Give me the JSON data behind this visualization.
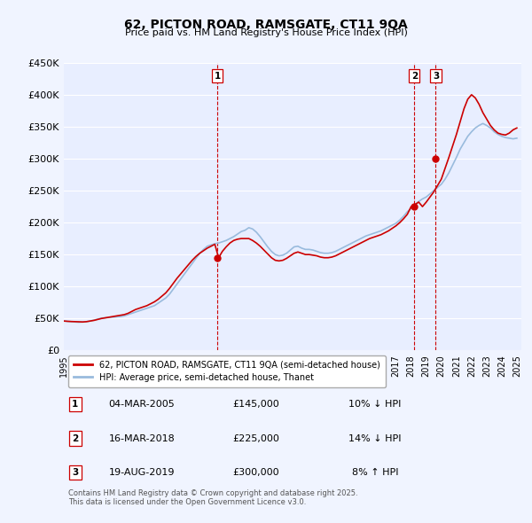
{
  "title": "62, PICTON ROAD, RAMSGATE, CT11 9QA",
  "subtitle": "Price paid vs. HM Land Registry's House Price Index (HPI)",
  "ylabel": "",
  "ylim": [
    0,
    450000
  ],
  "yticks": [
    0,
    50000,
    100000,
    150000,
    200000,
    250000,
    300000,
    350000,
    400000,
    450000
  ],
  "ytick_labels": [
    "£0",
    "£50K",
    "£100K",
    "£150K",
    "£200K",
    "£250K",
    "£300K",
    "£350K",
    "£400K",
    "£450K"
  ],
  "background_color": "#f0f4ff",
  "plot_bg_color": "#e8eeff",
  "grid_color": "#ffffff",
  "red_color": "#cc0000",
  "blue_color": "#99bbdd",
  "transaction_color": "#cc0000",
  "legend_label_red": "62, PICTON ROAD, RAMSGATE, CT11 9QA (semi-detached house)",
  "legend_label_blue": "HPI: Average price, semi-detached house, Thanet",
  "transactions": [
    {
      "num": 1,
      "date": "04-MAR-2005",
      "price": 145000,
      "pct": "10%",
      "dir": "↓",
      "year": 2005.17
    },
    {
      "num": 2,
      "date": "16-MAR-2018",
      "price": 225000,
      "pct": "14%",
      "dir": "↓",
      "year": 2018.21
    },
    {
      "num": 3,
      "date": "19-AUG-2019",
      "price": 300000,
      "pct": "8%",
      "dir": "↑",
      "year": 2019.63
    }
  ],
  "footer": "Contains HM Land Registry data © Crown copyright and database right 2025.\nThis data is licensed under the Open Government Licence v3.0.",
  "hpi_years": [
    1995.0,
    1995.25,
    1995.5,
    1995.75,
    1996.0,
    1996.25,
    1996.5,
    1996.75,
    1997.0,
    1997.25,
    1997.5,
    1997.75,
    1998.0,
    1998.25,
    1998.5,
    1998.75,
    1999.0,
    1999.25,
    1999.5,
    1999.75,
    2000.0,
    2000.25,
    2000.5,
    2000.75,
    2001.0,
    2001.25,
    2001.5,
    2001.75,
    2002.0,
    2002.25,
    2002.5,
    2002.75,
    2003.0,
    2003.25,
    2003.5,
    2003.75,
    2004.0,
    2004.25,
    2004.5,
    2004.75,
    2005.0,
    2005.25,
    2005.5,
    2005.75,
    2006.0,
    2006.25,
    2006.5,
    2006.75,
    2007.0,
    2007.25,
    2007.5,
    2007.75,
    2008.0,
    2008.25,
    2008.5,
    2008.75,
    2009.0,
    2009.25,
    2009.5,
    2009.75,
    2010.0,
    2010.25,
    2010.5,
    2010.75,
    2011.0,
    2011.25,
    2011.5,
    2011.75,
    2012.0,
    2012.25,
    2012.5,
    2012.75,
    2013.0,
    2013.25,
    2013.5,
    2013.75,
    2014.0,
    2014.25,
    2014.5,
    2014.75,
    2015.0,
    2015.25,
    2015.5,
    2015.75,
    2016.0,
    2016.25,
    2016.5,
    2016.75,
    2017.0,
    2017.25,
    2017.5,
    2017.75,
    2018.0,
    2018.25,
    2018.5,
    2018.75,
    2019.0,
    2019.25,
    2019.5,
    2019.75,
    2020.0,
    2020.25,
    2020.5,
    2020.75,
    2021.0,
    2021.25,
    2021.5,
    2021.75,
    2022.0,
    2022.25,
    2022.5,
    2022.75,
    2023.0,
    2023.25,
    2023.5,
    2023.75,
    2024.0,
    2024.25,
    2024.5,
    2024.75,
    2025.0
  ],
  "hpi_values": [
    46000,
    45500,
    45000,
    44500,
    44000,
    44500,
    45000,
    46000,
    47500,
    49000,
    50500,
    51000,
    51500,
    52000,
    52500,
    53000,
    54000,
    56000,
    58000,
    60000,
    62000,
    64000,
    66000,
    68000,
    70000,
    74000,
    78000,
    82000,
    88000,
    96000,
    104000,
    112000,
    120000,
    128000,
    136000,
    144000,
    152000,
    158000,
    163000,
    165000,
    167000,
    168000,
    170000,
    172000,
    175000,
    178000,
    182000,
    186000,
    188000,
    192000,
    190000,
    185000,
    178000,
    170000,
    162000,
    155000,
    150000,
    148000,
    149000,
    152000,
    157000,
    162000,
    163000,
    160000,
    158000,
    158000,
    157000,
    155000,
    153000,
    152000,
    152000,
    153000,
    155000,
    158000,
    161000,
    164000,
    167000,
    170000,
    173000,
    176000,
    179000,
    181000,
    183000,
    185000,
    187000,
    190000,
    193000,
    196000,
    199000,
    204000,
    210000,
    217000,
    222000,
    228000,
    233000,
    237000,
    240000,
    245000,
    250000,
    255000,
    260000,
    268000,
    278000,
    290000,
    302000,
    315000,
    325000,
    335000,
    342000,
    348000,
    352000,
    355000,
    352000,
    348000,
    342000,
    338000,
    335000,
    333000,
    332000,
    331000,
    332000
  ],
  "price_years": [
    1995.0,
    1995.25,
    1995.5,
    1995.75,
    1996.0,
    1996.25,
    1996.5,
    1996.75,
    1997.0,
    1997.25,
    1997.5,
    1997.75,
    1998.0,
    1998.25,
    1998.5,
    1998.75,
    1999.0,
    1999.25,
    1999.5,
    1999.75,
    2000.0,
    2000.25,
    2000.5,
    2000.75,
    2001.0,
    2001.25,
    2001.5,
    2001.75,
    2002.0,
    2002.25,
    2002.5,
    2002.75,
    2003.0,
    2003.25,
    2003.5,
    2003.75,
    2004.0,
    2004.25,
    2004.5,
    2004.75,
    2005.0,
    2005.25,
    2005.5,
    2005.75,
    2006.0,
    2006.25,
    2006.5,
    2006.75,
    2007.0,
    2007.25,
    2007.5,
    2007.75,
    2008.0,
    2008.25,
    2008.5,
    2008.75,
    2009.0,
    2009.25,
    2009.5,
    2009.75,
    2010.0,
    2010.25,
    2010.5,
    2010.75,
    2011.0,
    2011.25,
    2011.5,
    2011.75,
    2012.0,
    2012.25,
    2012.5,
    2012.75,
    2013.0,
    2013.25,
    2013.5,
    2013.75,
    2014.0,
    2014.25,
    2014.5,
    2014.75,
    2015.0,
    2015.25,
    2015.5,
    2015.75,
    2016.0,
    2016.25,
    2016.5,
    2016.75,
    2017.0,
    2017.25,
    2017.5,
    2017.75,
    2018.0,
    2018.25,
    2018.5,
    2018.75,
    2019.0,
    2019.25,
    2019.5,
    2019.75,
    2020.0,
    2020.25,
    2020.5,
    2020.75,
    2021.0,
    2021.25,
    2021.5,
    2021.75,
    2022.0,
    2022.25,
    2022.5,
    2022.75,
    2023.0,
    2023.25,
    2023.5,
    2023.75,
    2024.0,
    2024.25,
    2024.5,
    2024.75,
    2025.0
  ],
  "price_values": [
    46000,
    45500,
    45200,
    45000,
    44800,
    44500,
    45000,
    46000,
    47000,
    48500,
    50000,
    51000,
    52000,
    53000,
    54000,
    55000,
    56000,
    58000,
    61000,
    64000,
    66000,
    68000,
    70000,
    73000,
    76000,
    80000,
    85000,
    90000,
    97000,
    105000,
    113000,
    120000,
    127000,
    134000,
    141000,
    147000,
    152000,
    156000,
    160000,
    163000,
    166000,
    145000,
    155000,
    162000,
    168000,
    172000,
    174000,
    175000,
    175000,
    175000,
    172000,
    168000,
    163000,
    157000,
    151000,
    145000,
    141000,
    140000,
    141000,
    144000,
    148000,
    152000,
    154000,
    152000,
    150000,
    150000,
    149000,
    148000,
    146000,
    145000,
    145000,
    146000,
    148000,
    151000,
    154000,
    157000,
    160000,
    163000,
    166000,
    169000,
    172000,
    175000,
    177000,
    179000,
    181000,
    184000,
    187000,
    191000,
    195000,
    200000,
    206000,
    213000,
    225000,
    228000,
    232000,
    225000,
    232000,
    240000,
    248000,
    258000,
    268000,
    285000,
    302000,
    320000,
    338000,
    358000,
    378000,
    393000,
    400000,
    395000,
    385000,
    372000,
    362000,
    352000,
    345000,
    340000,
    338000,
    337000,
    340000,
    345000,
    348000
  ]
}
